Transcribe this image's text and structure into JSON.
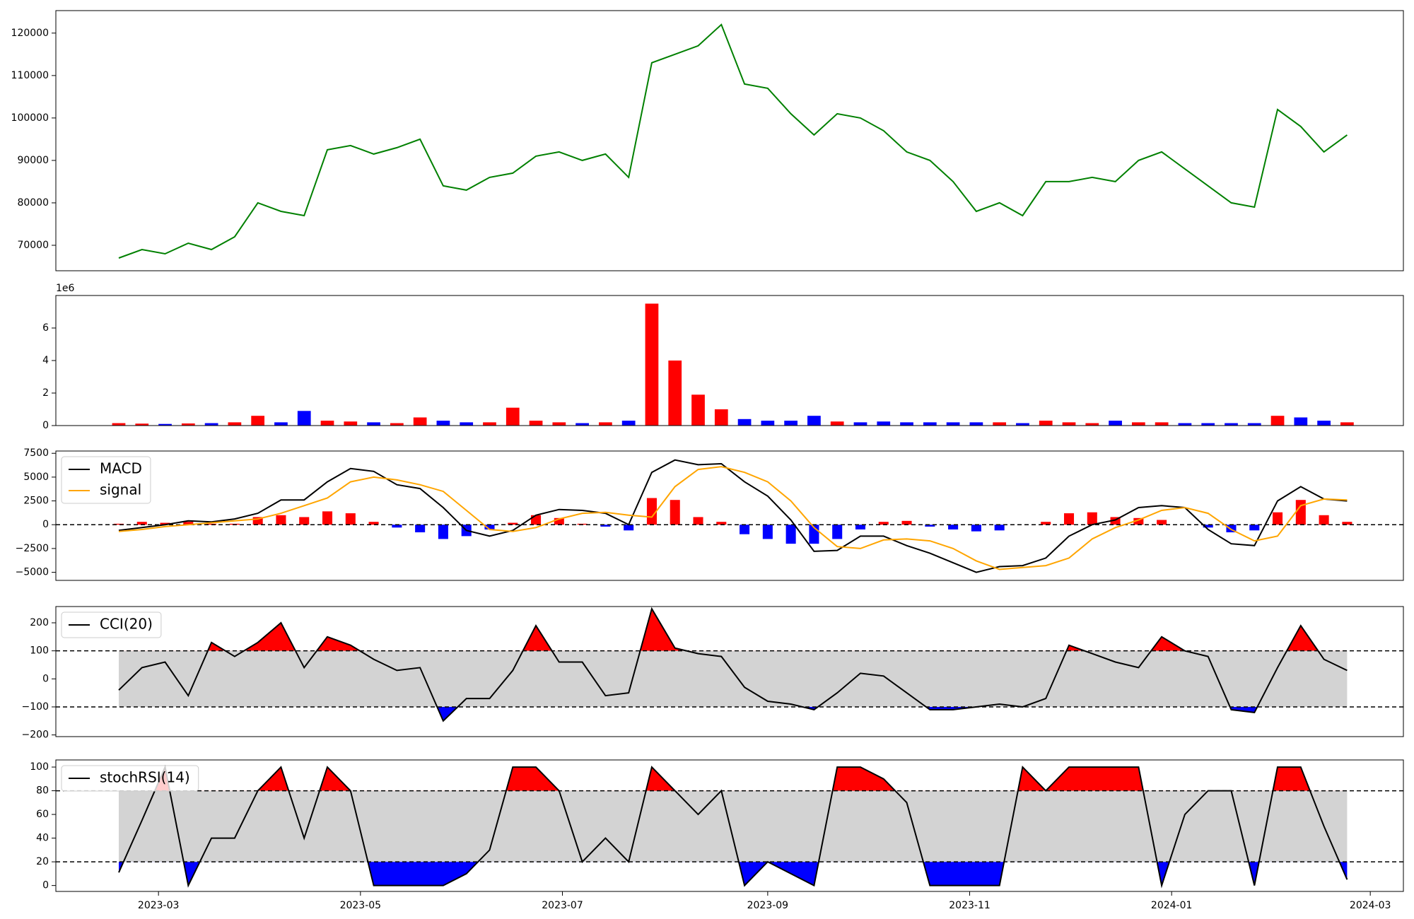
{
  "chart_data": [
    {
      "type": "line",
      "x": [
        "2023-02-17",
        "2023-02-24",
        "2023-03-03",
        "2023-03-10",
        "2023-03-17",
        "2023-03-24",
        "2023-03-31",
        "2023-04-07",
        "2023-04-14",
        "2023-04-21",
        "2023-04-28",
        "2023-05-05",
        "2023-05-12",
        "2023-05-19",
        "2023-05-26",
        "2023-06-02",
        "2023-06-09",
        "2023-06-16",
        "2023-06-23",
        "2023-06-30",
        "2023-07-07",
        "2023-07-14",
        "2023-07-21",
        "2023-07-28",
        "2023-08-04",
        "2023-08-11",
        "2023-08-18",
        "2023-08-25",
        "2023-09-01",
        "2023-09-08",
        "2023-09-15",
        "2023-09-22",
        "2023-09-29",
        "2023-10-06",
        "2023-10-13",
        "2023-10-20",
        "2023-10-27",
        "2023-11-03",
        "2023-11-10",
        "2023-11-17",
        "2023-11-24",
        "2023-12-01",
        "2023-12-08",
        "2023-12-15",
        "2023-12-22",
        "2023-12-29",
        "2024-01-05",
        "2024-01-12",
        "2024-01-19",
        "2024-01-26",
        "2024-02-02",
        "2024-02-09",
        "2024-02-16",
        "2024-02-23"
      ],
      "xlim": [
        "2023-01-29",
        "2024-03-11"
      ],
      "ylim": [
        64000,
        125300
      ],
      "yticks": [
        70000,
        80000,
        90000,
        100000,
        110000,
        120000
      ],
      "color": "green",
      "values": [
        67000,
        69000,
        68000,
        70500,
        69000,
        72000,
        80000,
        78000,
        77000,
        92500,
        93500,
        91500,
        93000,
        95000,
        84000,
        83000,
        86000,
        87000,
        91000,
        92000,
        90000,
        91500,
        86000,
        113000,
        115000,
        117000,
        122000,
        108000,
        107000,
        101000,
        96000,
        101000,
        100000,
        97000,
        92000,
        90000,
        85000,
        78000,
        80000,
        77000,
        85000,
        85000,
        86000,
        85000,
        90000,
        92000,
        88000,
        84000,
        80000,
        79000,
        102000,
        98000,
        92000,
        96000
      ]
    },
    {
      "type": "bar",
      "ylim": [
        0,
        8000000
      ],
      "yticks": [
        {
          "value": 0,
          "label": "0"
        },
        {
          "value": 2000000,
          "label": "2"
        },
        {
          "value": 4000000,
          "label": "4"
        },
        {
          "value": 6000000,
          "label": "6"
        }
      ],
      "offset_label": "1e6",
      "up_color": "red",
      "down_color": "blue",
      "values": [
        150000,
        120000,
        100000,
        130000,
        150000,
        200000,
        600000,
        200000,
        900000,
        300000,
        250000,
        200000,
        150000,
        500000,
        300000,
        200000,
        200000,
        1100000,
        300000,
        200000,
        150000,
        200000,
        300000,
        7500000,
        4000000,
        1900000,
        1000000,
        400000,
        300000,
        300000,
        600000,
        250000,
        200000,
        250000,
        200000,
        200000,
        200000,
        200000,
        200000,
        150000,
        300000,
        200000,
        150000,
        300000,
        200000,
        200000,
        150000,
        150000,
        150000,
        150000,
        600000,
        500000,
        300000,
        200000
      ]
    },
    {
      "type": "macd",
      "ylim": [
        -5850,
        7740
      ],
      "yticks": [
        {
          "value": -5000,
          "label": "−5000"
        },
        {
          "value": -2500,
          "label": "−2500"
        },
        0,
        2500,
        5000,
        7500
      ],
      "hlines": [
        0
      ],
      "legend": "upper left",
      "series": [
        {
          "name": "MACD",
          "color": "black",
          "values": [
            -600,
            -300,
            0,
            400,
            300,
            600,
            1200,
            2600,
            2600,
            4500,
            5900,
            5600,
            4200,
            3800,
            1800,
            -600,
            -1200,
            -600,
            1000,
            1600,
            1500,
            1200,
            0,
            5500,
            6800,
            6300,
            6400,
            4500,
            3000,
            500,
            -2800,
            -2700,
            -1200,
            -1200,
            -2200,
            -3000,
            -4000,
            -5000,
            -4400,
            -4300,
            -3500,
            -1200,
            0,
            500,
            1800,
            2000,
            1800,
            -500,
            -2000,
            -2200,
            2500,
            4000,
            2700,
            2500
          ]
        },
        {
          "name": "signal",
          "color": "orange",
          "values": [
            -700,
            -500,
            -200,
            0,
            200,
            400,
            600,
            1200,
            2000,
            2800,
            4500,
            5000,
            4700,
            4200,
            3500,
            1500,
            -500,
            -700,
            -300,
            600,
            1200,
            1300,
            1000,
            800,
            4000,
            5800,
            6100,
            5500,
            4500,
            2500,
            -300,
            -2300,
            -2500,
            -1600,
            -1500,
            -1700,
            -2500,
            -3800,
            -4700,
            -4500,
            -4300,
            -3500,
            -1500,
            -300,
            500,
            1500,
            1800,
            1200,
            -500,
            -1700,
            -1200,
            2000,
            2700,
            2600
          ]
        }
      ],
      "histogram": {
        "up_color": "red",
        "down_color": "blue",
        "values": [
          100,
          300,
          200,
          300,
          100,
          100,
          800,
          1000,
          800,
          1400,
          1200,
          300,
          -300,
          -800,
          -1500,
          -1200,
          -500,
          200,
          1000,
          700,
          100,
          -200,
          -600,
          2800,
          2600,
          800,
          300,
          -1000,
          -1500,
          -2000,
          -2000,
          -1500,
          -500,
          300,
          400,
          -200,
          -500,
          -700,
          -600,
          0,
          300,
          1200,
          1300,
          800,
          700,
          500,
          0,
          -300,
          -800,
          -600,
          1300,
          2600,
          1000,
          300
        ]
      }
    },
    {
      "type": "oscillator",
      "ylim": [
        -206,
        258
      ],
      "yticks": [
        {
          "value": -200,
          "label": "−200"
        },
        {
          "value": -100,
          "label": "−100"
        },
        0,
        100,
        200
      ],
      "band": [
        -100,
        100
      ],
      "band_color": "lightgray",
      "upper_color": "red",
      "lower_color": "blue",
      "legend": "upper left",
      "series": [
        {
          "name": "CCI(20)",
          "color": "black",
          "values": [
            -40,
            40,
            60,
            -60,
            130,
            80,
            130,
            200,
            40,
            150,
            120,
            70,
            30,
            40,
            -150,
            -70,
            -70,
            30,
            190,
            60,
            60,
            -60,
            -50,
            250,
            110,
            90,
            80,
            -30,
            -80,
            -90,
            -110,
            -50,
            20,
            10,
            -50,
            -110,
            -110,
            -100,
            -90,
            -100,
            -70,
            120,
            90,
            60,
            40,
            150,
            100,
            80,
            -110,
            -120,
            40,
            190,
            70,
            30
          ]
        }
      ]
    },
    {
      "type": "oscillator",
      "ylim": [
        -5,
        106
      ],
      "yticks": [
        0,
        20,
        40,
        60,
        80,
        100
      ],
      "band": [
        20,
        80
      ],
      "band_color": "lightgray",
      "upper_color": "red",
      "lower_color": "blue",
      "legend": "upper left",
      "xticks": [
        "2023-03",
        "2023-05",
        "2023-07",
        "2023-09",
        "2023-11",
        "2024-01",
        "2024-03"
      ],
      "series": [
        {
          "name": "stochRSI(14)",
          "color": "black",
          "values": [
            11,
            55,
            100,
            0,
            40,
            40,
            80,
            100,
            40,
            100,
            80,
            0,
            0,
            0,
            0,
            10,
            30,
            100,
            100,
            80,
            20,
            40,
            20,
            100,
            80,
            60,
            80,
            0,
            20,
            10,
            0,
            100,
            100,
            90,
            70,
            0,
            0,
            0,
            0,
            100,
            80,
            100,
            100,
            100,
            100,
            0,
            60,
            80,
            80,
            0,
            100,
            100,
            50,
            5
          ]
        }
      ]
    }
  ]
}
